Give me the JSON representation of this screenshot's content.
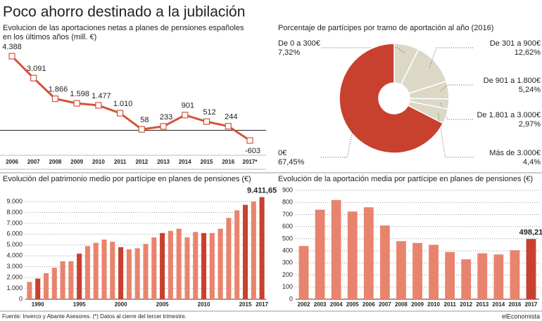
{
  "title": "Poco ahorro destinado a la jubilación",
  "footer": {
    "source": "Fuente: Inverco y Abante Asesores. (*) Datos al cierre del tercer trimestre.",
    "brand": "elEconomista"
  },
  "chart_data": [
    {
      "type": "line",
      "title": "Evolucion de las aportaciones netas a planes de pensiones españoles en los últimos años (mill. €)",
      "categories": [
        "2006",
        "2007",
        "2008",
        "2009",
        "2010",
        "2011",
        "2012",
        "2013",
        "2014",
        "2015",
        "2016",
        "2017*"
      ],
      "values": [
        4388,
        3091,
        1866,
        1598,
        1477,
        1010,
        58,
        233,
        901,
        512,
        244,
        -603
      ],
      "value_labels": [
        "4.388",
        "3.091",
        "1.866",
        "1.598",
        "1.477",
        "1.010",
        "58",
        "233",
        "901",
        "512",
        "244",
        "-603"
      ],
      "color": "#d4533b"
    },
    {
      "type": "pie",
      "title": "Porcentaje de partícipes por tramo de aportación al año (2016)",
      "categories": [
        "De 0 a 300€",
        "De 301 a 900€",
        "De 901 a 1.800€",
        "De 1.801 a 3.000€",
        "Más de 3.000€",
        "0€"
      ],
      "values": [
        7.32,
        12.62,
        5.24,
        2.97,
        4.4,
        67.45
      ],
      "value_labels": [
        "7,32%",
        "12,62%",
        "5,24%",
        "2,97%",
        "4,4%",
        "67,45%"
      ],
      "colors": [
        "#dcd8c6",
        "#dcd8c6",
        "#dcd8c6",
        "#dcd8c6",
        "#dcd8c6",
        "#c8412f"
      ]
    },
    {
      "type": "bar",
      "title": "Evolución del patrimonio medio por partícipe en planes de pensiones (€)",
      "categories": [
        null,
        "1990",
        null,
        null,
        null,
        null,
        "1995",
        null,
        null,
        null,
        null,
        "2000",
        null,
        null,
        null,
        null,
        "2005",
        null,
        null,
        null,
        null,
        "2010",
        null,
        null,
        null,
        null,
        "2015",
        null,
        "2017"
      ],
      "values": [
        1600,
        1900,
        2400,
        2900,
        3500,
        3500,
        4200,
        4900,
        5200,
        5500,
        5300,
        4800,
        4600,
        4700,
        5100,
        5700,
        6100,
        6300,
        6500,
        5700,
        6200,
        6100,
        6100,
        6500,
        7500,
        8200,
        8700,
        9000,
        9411.65
      ],
      "value_labels": [
        null,
        null,
        null,
        null,
        null,
        null,
        null,
        null,
        null,
        null,
        null,
        null,
        null,
        null,
        null,
        null,
        null,
        null,
        null,
        null,
        null,
        null,
        null,
        null,
        null,
        null,
        null,
        null,
        "9.411,65"
      ],
      "colors": [
        "#e8846d",
        "#c8412f",
        "#e8846d",
        "#e8846d",
        "#e8846d",
        "#e8846d",
        "#c8412f",
        "#e8846d",
        "#e8846d",
        "#e8846d",
        "#e8846d",
        "#c8412f",
        "#e8846d",
        "#e8846d",
        "#e8846d",
        "#e8846d",
        "#c8412f",
        "#e8846d",
        "#e8846d",
        "#e8846d",
        "#e8846d",
        "#c8412f",
        "#e8846d",
        "#e8846d",
        "#e8846d",
        "#e8846d",
        "#c8412f",
        "#e8846d",
        "#c8412f"
      ],
      "ylim": [
        0,
        9000
      ],
      "yticks": [
        0,
        {
          "value": 1000,
          "label": "1.000"
        },
        {
          "value": 2000,
          "label": "2.000"
        },
        {
          "value": 3000,
          "label": "3.000"
        },
        {
          "value": 4000,
          "label": "4.000"
        },
        {
          "value": 5000,
          "label": "5.000"
        },
        {
          "value": 6000,
          "label": "6.000"
        },
        {
          "value": 7000,
          "label": "7.000"
        },
        {
          "value": 8000,
          "label": "8.000"
        },
        {
          "value": 9000,
          "label": "9.000"
        }
      ],
      "grid": true
    },
    {
      "type": "bar",
      "title": "Evolución de la aportación media por partícipe en planes de pensiones (€)",
      "categories": [
        "2002",
        "2003",
        "2004",
        "2005",
        "2006",
        "2007",
        "2008",
        "2009",
        "2010",
        "2011",
        "2012",
        "2013",
        "2014",
        "2016",
        "2017"
      ],
      "values": [
        440,
        740,
        820,
        725,
        760,
        610,
        480,
        465,
        450,
        390,
        330,
        380,
        370,
        405,
        498.21
      ],
      "value_labels": [
        null,
        null,
        null,
        null,
        null,
        null,
        null,
        null,
        null,
        null,
        null,
        null,
        null,
        null,
        "498,21"
      ],
      "colors": [
        "#e8846d",
        "#e8846d",
        "#e8846d",
        "#e8846d",
        "#e8846d",
        "#e8846d",
        "#e8846d",
        "#e8846d",
        "#e8846d",
        "#e8846d",
        "#e8846d",
        "#e8846d",
        "#e8846d",
        "#e8846d",
        "#c8412f"
      ],
      "ylim": [
        0,
        900
      ],
      "yticks": [
        0,
        100,
        200,
        300,
        400,
        500,
        600,
        700,
        800,
        900
      ],
      "grid": true
    }
  ]
}
